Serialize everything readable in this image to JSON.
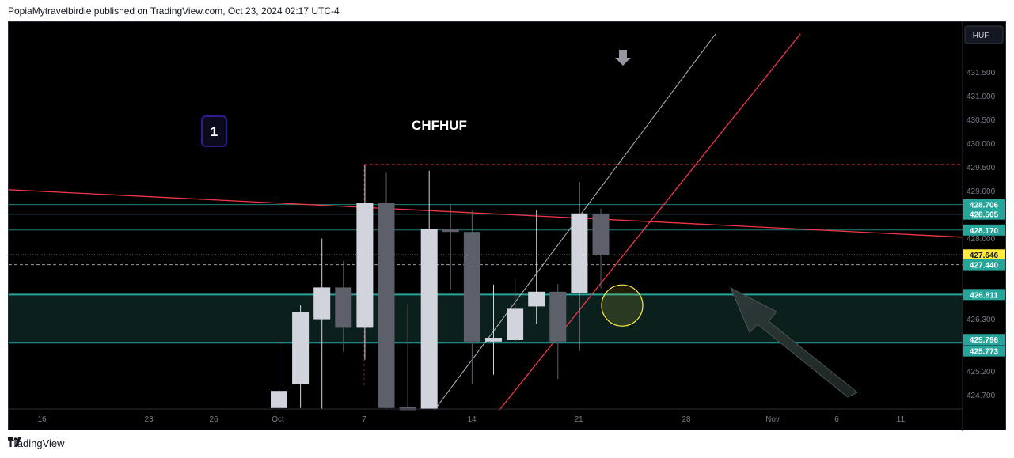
{
  "header": {
    "published_by": "PopiaMytravelbirdie published on TradingView.com, Oct 23, 2024 02:17 UTC-4"
  },
  "footer": {
    "brand": "TradingView",
    "logo_icon": "tradingview-logo-icon"
  },
  "chart_data": {
    "type": "candlestick",
    "title": "CHFHUF",
    "currency_badge": "HUF",
    "count_label": "1",
    "ylim": [
      424.4,
      432.05
    ],
    "y_ticks": [
      "431.500",
      "431.000",
      "430.500",
      "430.000",
      "429.500",
      "429.000",
      "428.500",
      "428.000",
      "426.300",
      "425.200",
      "424.700"
    ],
    "x_ticks": [
      "16",
      "23",
      "26",
      "Oct",
      "7",
      "14",
      "21",
      "28",
      "Nov",
      "6",
      "11"
    ],
    "candles": [
      {
        "o": 424.42,
        "h": 425.95,
        "l": 424.1,
        "c": 424.78,
        "color": "light"
      },
      {
        "o": 424.92,
        "h": 426.59,
        "l": 424.42,
        "c": 426.44,
        "color": "light"
      },
      {
        "o": 426.29,
        "h": 427.99,
        "l": 424.3,
        "c": 426.96,
        "color": "light"
      },
      {
        "o": 426.96,
        "h": 427.52,
        "l": 425.6,
        "c": 426.11,
        "color": "dark"
      },
      {
        "o": 426.11,
        "h": 429.54,
        "l": 425.44,
        "c": 428.75,
        "color": "light"
      },
      {
        "o": 428.75,
        "h": 429.38,
        "l": 424.3,
        "c": 424.42,
        "color": "dark"
      },
      {
        "o": 424.42,
        "h": 426.61,
        "l": 424.1,
        "c": 424.36,
        "color": "dark"
      },
      {
        "o": 424.36,
        "h": 429.42,
        "l": 424.3,
        "c": 428.2,
        "color": "light"
      },
      {
        "o": 428.2,
        "h": 428.72,
        "l": 426.92,
        "c": 428.13,
        "color": "dark"
      },
      {
        "o": 428.13,
        "h": 428.57,
        "l": 424.92,
        "c": 425.82,
        "color": "dark"
      },
      {
        "o": 425.82,
        "h": 427.02,
        "l": 425.12,
        "c": 425.9,
        "color": "light"
      },
      {
        "o": 425.85,
        "h": 427.15,
        "l": 425.82,
        "c": 426.51,
        "color": "light"
      },
      {
        "o": 426.56,
        "h": 428.59,
        "l": 426.2,
        "c": 426.87,
        "color": "light"
      },
      {
        "o": 426.87,
        "h": 427.03,
        "l": 425.03,
        "c": 425.82,
        "color": "dark"
      },
      {
        "o": 426.85,
        "h": 429.18,
        "l": 425.62,
        "c": 428.52,
        "color": "light"
      },
      {
        "o": 428.52,
        "h": 428.62,
        "l": 426.94,
        "c": 427.65,
        "color": "dark"
      }
    ],
    "price_labels": [
      {
        "value": 428.706,
        "text": "428.706",
        "color": "#26a69a"
      },
      {
        "value": 428.505,
        "text": "428.505",
        "color": "#26a69a"
      },
      {
        "value": 428.17,
        "text": "428.170",
        "color": "#26a69a"
      },
      {
        "value": 427.646,
        "text": "427.646",
        "color": "#ffeb3b"
      },
      {
        "value": 427.44,
        "text": "427.440",
        "color": "#26a69a"
      },
      {
        "value": 426.811,
        "text": "426.811",
        "color": "#26a69a"
      },
      {
        "value": 425.796,
        "text": "425.796",
        "color": "#26a69a"
      },
      {
        "value": 425.773,
        "text": "425.773",
        "color": "#26a69a"
      }
    ],
    "horizontal_levels": [
      428.706,
      428.505,
      428.17
    ],
    "dashed_level": 427.44,
    "dotted_level": 427.646,
    "red_dashed_level": 429.55,
    "zone": {
      "top": 426.811,
      "bottom": 425.796,
      "color": "#26a69a"
    },
    "grid": false,
    "colors": {
      "background": "#000000",
      "candle_light": "#d1d4dc",
      "candle_dark": "#5d606b",
      "teal": "#26a69a",
      "red": "#f23645",
      "yellow_circle": "#ffeb3b",
      "badge_border": "#311b92"
    }
  }
}
